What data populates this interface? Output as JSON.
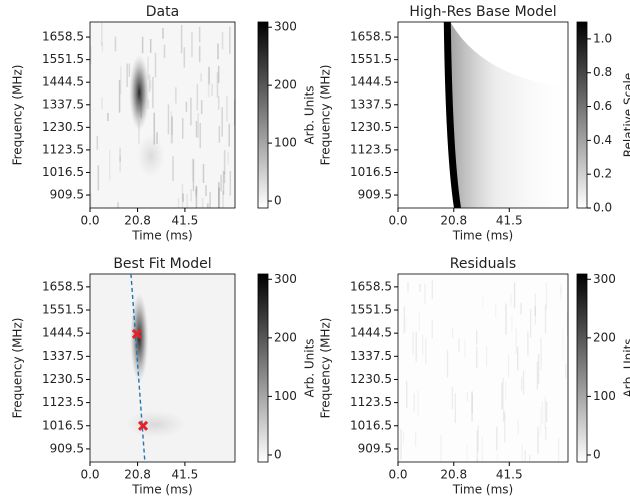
{
  "chart_data": [
    {
      "type": "heatmap",
      "title": "Data",
      "xlabel": "Time (ms)",
      "ylabel": "Frequency (MHz)",
      "xlim": [
        0,
        63.4
      ],
      "xticks": [
        {
          "value": 0,
          "label": "0.0"
        },
        20.8,
        41.5
      ],
      "ylim": [
        848,
        1730
      ],
      "yticks": [
        909.5,
        1016.5,
        1123.5,
        1230.5,
        1337.5,
        1444.5,
        1551.5,
        1658.5
      ],
      "colorbar_label": "Arb. Units",
      "clim": [
        -12,
        309
      ],
      "cticks": [
        0,
        100,
        200,
        300
      ]
    },
    {
      "type": "heatmap",
      "title": "High-Res Base Model",
      "xlabel": "Time (ms)",
      "ylabel": "Frequency (MHz)",
      "xlim": [
        0,
        63.4
      ],
      "xticks": [
        {
          "value": 0,
          "label": "0.0"
        },
        20.8,
        41.5
      ],
      "ylim": [
        848,
        1730
      ],
      "yticks": [
        909.5,
        1016.5,
        1123.5,
        1230.5,
        1337.5,
        1444.5,
        1551.5,
        1658.5
      ],
      "colorbar_label": "Relative Scale",
      "clim": [
        0,
        1.1
      ],
      "cticks": [
        {
          "value": 0,
          "label": "0.0"
        },
        0.2,
        0.4,
        0.6,
        0.8,
        {
          "value": 1,
          "label": "1.0"
        }
      ]
    },
    {
      "type": "heatmap",
      "title": "Best Fit Model",
      "xlabel": "Time (ms)",
      "ylabel": "Frequency (MHz)",
      "xlim": [
        0,
        63.4
      ],
      "xticks": [
        {
          "value": 0,
          "label": "0.0"
        },
        20.8,
        41.5
      ],
      "ylim": [
        849,
        1718
      ],
      "yticks": [
        909.5,
        1016.5,
        1123.5,
        1230.5,
        1337.5,
        1444.5,
        1551.5,
        1658.5
      ],
      "colorbar_label": "Arb. Units",
      "clim": [
        -12,
        309
      ],
      "cticks": [
        0,
        100,
        200,
        300
      ],
      "points": {
        "x": [
          20.5,
          23.2
        ],
        "y": [
          1441,
          1016
        ],
        "color": "#e8202a"
      },
      "line": {
        "x": [
          17.9,
          24.0
        ],
        "y": [
          1718,
          849
        ],
        "color": "#1f77b4",
        "dashed": true
      }
    },
    {
      "type": "heatmap",
      "title": "Residuals",
      "xlabel": "Time (ms)",
      "ylabel": "Frequency (MHz)",
      "xlim": [
        0,
        63.4
      ],
      "xticks": [
        {
          "value": 0,
          "label": "0.0"
        },
        20.8,
        41.5
      ],
      "ylim": [
        849,
        1718
      ],
      "yticks": [
        909.5,
        1016.5,
        1123.5,
        1230.5,
        1337.5,
        1444.5,
        1551.5,
        1658.5
      ],
      "colorbar_label": "Arb. Units",
      "clim": [
        -12,
        309
      ],
      "cticks": [
        0,
        100,
        200,
        300
      ]
    }
  ]
}
